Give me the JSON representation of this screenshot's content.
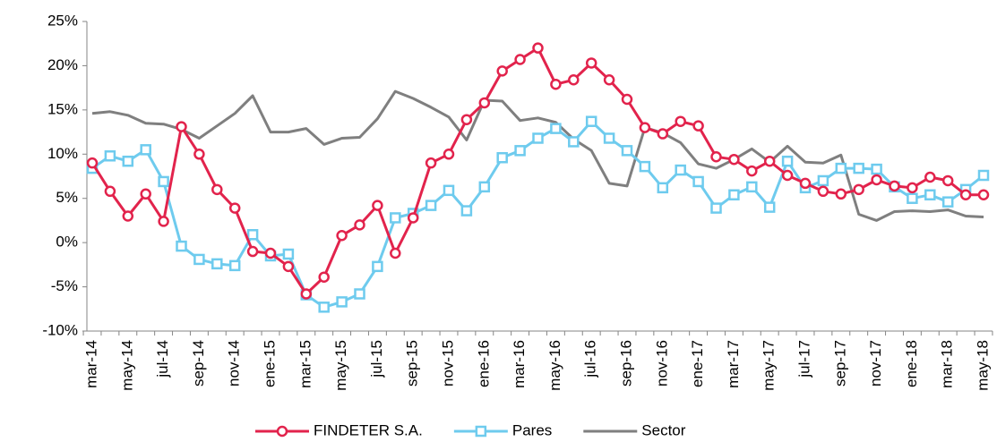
{
  "chart_data": {
    "type": "line",
    "categories": [
      "mar-14",
      null,
      "may-14",
      null,
      "jul-14",
      null,
      "sep-14",
      null,
      "nov-14",
      null,
      "ene-15",
      null,
      "mar-15",
      null,
      "may-15",
      null,
      "jul-15",
      null,
      "sep-15",
      null,
      "nov-15",
      null,
      "ene-16",
      null,
      "mar-16",
      null,
      "may-16",
      null,
      "jul-16",
      null,
      "sep-16",
      null,
      "nov-16",
      null,
      "ene-17",
      null,
      "mar-17",
      null,
      "may-17",
      null,
      "jul-17",
      null,
      "sep-17",
      null,
      "nov-17",
      null,
      "ene-18",
      null,
      "mar-18",
      null,
      "may-18"
    ],
    "series": [
      {
        "name": "FINDETER S.A.",
        "color": "#e2234c",
        "marker": "circle",
        "values": [
          9,
          5.8,
          3,
          5.5,
          2.4,
          13.1,
          10,
          6,
          3.9,
          -1,
          -1.2,
          -2.7,
          -5.8,
          -3.9,
          0.8,
          2,
          4.2,
          -1.2,
          2.8,
          9,
          10,
          13.9,
          15.8,
          19.4,
          20.7,
          22,
          17.9,
          18.4,
          20.3,
          18.4,
          16.2,
          13,
          12.3,
          13.7,
          13.2,
          9.7,
          9.4,
          8.1,
          9.2,
          7.6,
          6.7,
          5.8,
          5.5,
          6,
          7.1,
          6.4,
          6.2,
          7.4,
          7,
          5.4,
          5.4
        ]
      },
      {
        "name": "Pares",
        "color": "#6ecbee",
        "marker": "square",
        "values": [
          8.4,
          9.8,
          9.2,
          10.5,
          6.9,
          -0.4,
          -1.9,
          -2.4,
          -2.6,
          0.9,
          -1.5,
          -1.3,
          -5.9,
          -7.3,
          -6.7,
          -5.8,
          -2.7,
          2.8,
          3.3,
          4.2,
          5.9,
          3.6,
          6.3,
          9.6,
          10.4,
          11.8,
          12.9,
          11.4,
          13.7,
          11.8,
          10.4,
          8.6,
          6.2,
          8.2,
          6.9,
          3.9,
          5.4,
          6.3,
          4,
          9.2,
          6.2,
          7,
          8.4,
          8.4,
          8.3,
          6.3,
          5,
          5.4,
          4.6,
          6,
          7.6
        ]
      },
      {
        "name": "Sector",
        "color": "#7f7f7f",
        "marker": "none",
        "values": [
          14.6,
          14.8,
          14.4,
          13.5,
          13.4,
          12.8,
          11.8,
          13.2,
          14.6,
          16.6,
          12.5,
          12.5,
          12.9,
          11.1,
          11.8,
          11.9,
          14,
          17.1,
          16.3,
          15.3,
          14.2,
          11.6,
          16.1,
          16,
          13.8,
          14.1,
          13.6,
          11.7,
          10.4,
          6.7,
          6.4,
          13,
          12.4,
          11.3,
          8.9,
          8.4,
          9.4,
          10.6,
          9.1,
          10.9,
          9.1,
          9,
          9.9,
          3.2,
          2.5,
          3.5,
          3.6,
          3.5,
          3.7,
          3,
          2.9
        ]
      }
    ],
    "ylim": [
      -10,
      25
    ],
    "yticks": [
      {
        "value": -10,
        "label": "-10%"
      },
      {
        "value": -5,
        "label": "-5%"
      },
      {
        "value": 0,
        "label": "0%"
      },
      {
        "value": 5,
        "label": "5%"
      },
      {
        "value": 10,
        "label": "10%"
      },
      {
        "value": 15,
        "label": "15%"
      },
      {
        "value": 20,
        "label": "20%"
      },
      {
        "value": 25,
        "label": "25%"
      }
    ],
    "grid": false,
    "legend": "bottom"
  }
}
